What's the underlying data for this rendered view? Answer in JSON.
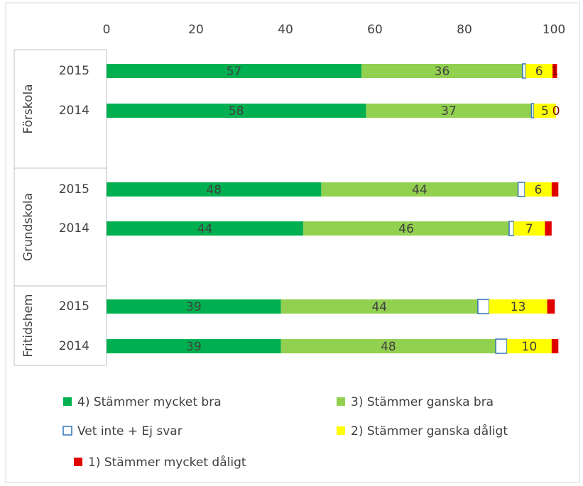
{
  "chart_data": {
    "type": "stacked_barh",
    "groups": [
      {
        "name": "Förskola",
        "categories": [
          "2015",
          "2014"
        ]
      },
      {
        "name": "Grundskola",
        "categories": [
          "2015",
          "2014"
        ]
      },
      {
        "name": "Fritidshem",
        "categories": [
          "2015",
          "2014"
        ]
      }
    ],
    "series": [
      {
        "name": "4) Stämmer mycket bra",
        "color": "#00b050",
        "values": [
          57,
          58,
          48,
          44,
          39,
          39
        ],
        "labels": [
          true,
          true,
          true,
          true,
          true,
          true
        ]
      },
      {
        "name": "3) Stämmer ganska bra",
        "color": "#92d050",
        "values": [
          36,
          37,
          44,
          46,
          44,
          48
        ],
        "labels": [
          true,
          true,
          true,
          true,
          true,
          true
        ]
      },
      {
        "name": "Vet inte + Ej svar",
        "color": "#ffffff",
        "stroke": "#2e75b6",
        "values": [
          0.7,
          0.5,
          1.5,
          1,
          2.5,
          2.5
        ],
        "labels": [
          false,
          false,
          false,
          false,
          false,
          false
        ]
      },
      {
        "name": "2) Stämmer ganska dåligt",
        "color": "#ffff00",
        "values": [
          6,
          5,
          6,
          7,
          13,
          10
        ],
        "labels": [
          true,
          true,
          true,
          true,
          true,
          true
        ]
      },
      {
        "name": "1) Stämmer mycket dåligt",
        "color": "#e00000",
        "values": [
          1,
          0,
          1.5,
          1.5,
          1.7,
          1.5
        ],
        "labels": [
          true,
          true,
          false,
          false,
          false,
          false
        ]
      }
    ],
    "xlim": [
      0,
      100
    ],
    "xticks": [
      0,
      20,
      40,
      60,
      80,
      100
    ],
    "grid": false
  }
}
